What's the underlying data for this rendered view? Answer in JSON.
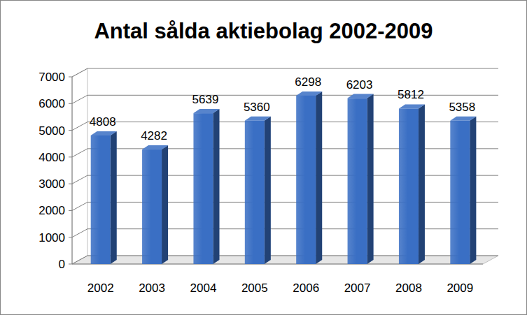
{
  "chart_data": {
    "type": "bar",
    "title": "Antal sålda aktiebolag 2002-2009",
    "categories": [
      "2002",
      "2003",
      "2004",
      "2005",
      "2006",
      "2007",
      "2008",
      "2009"
    ],
    "values": [
      4808,
      4282,
      5639,
      5360,
      6298,
      6203,
      5812,
      5358
    ],
    "color": "#3a6fc4",
    "ylim": [
      0,
      7000
    ],
    "yticks": [
      0,
      1000,
      2000,
      3000,
      4000,
      5000,
      6000,
      7000
    ],
    "grid": true,
    "data_labels": true
  }
}
